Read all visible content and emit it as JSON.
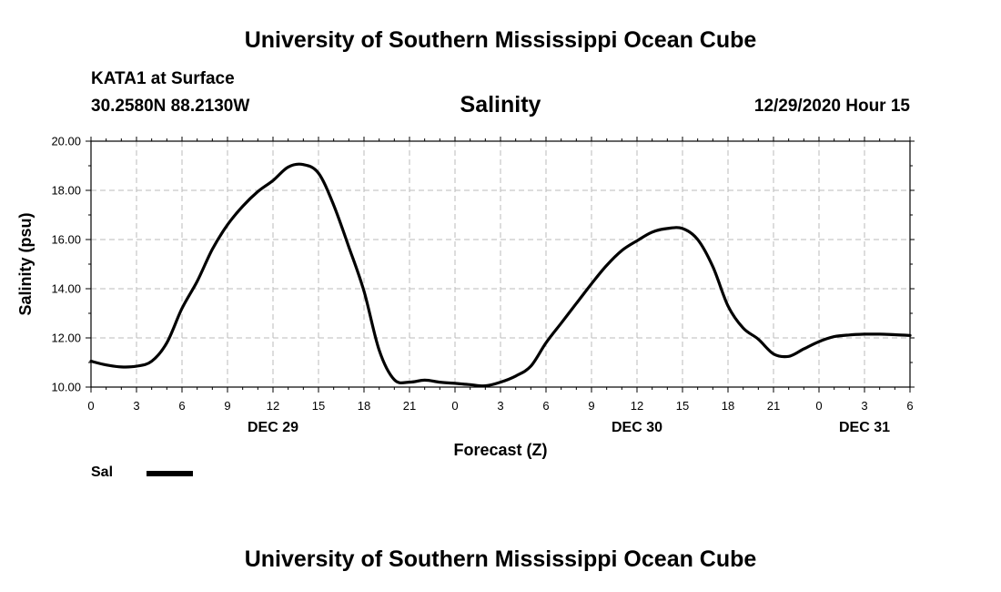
{
  "header": {
    "top_title": "University of Southern Mississippi Ocean Cube",
    "bottom_title": "University of Southern Mississippi Ocean Cube",
    "station": "KATA1 at Surface",
    "coords": "30.2580N 88.2130W",
    "chart_title": "Salinity",
    "datetime": "12/29/2020 Hour 15"
  },
  "chart_data": {
    "type": "line",
    "title": "Salinity",
    "xlabel": "Forecast (Z)",
    "ylabel": "Salinity (psu)",
    "xlim": [
      0,
      54
    ],
    "ylim": [
      10,
      20
    ],
    "grid": true,
    "x_ticks": [
      0,
      3,
      6,
      9,
      12,
      15,
      18,
      21,
      24,
      27,
      30,
      33,
      36,
      39,
      42,
      45,
      48,
      51,
      54
    ],
    "x_tick_labels": [
      "0",
      "3",
      "6",
      "9",
      "12",
      "15",
      "18",
      "21",
      "0",
      "3",
      "6",
      "9",
      "12",
      "15",
      "18",
      "21",
      "0",
      "3",
      "6"
    ],
    "y_ticks": [
      10,
      12,
      14,
      16,
      18,
      20
    ],
    "y_tick_labels": [
      "10.00",
      "12.00",
      "14.00",
      "16.00",
      "18.00",
      "20.00"
    ],
    "day_labels": [
      {
        "x": 12,
        "label": "DEC 29"
      },
      {
        "x": 36,
        "label": "DEC 30"
      },
      {
        "x": 51,
        "label": "DEC 31"
      }
    ],
    "legend": [
      {
        "name": "Sal",
        "color": "#000000"
      }
    ],
    "series": [
      {
        "name": "Sal",
        "x": [
          0,
          1,
          2,
          3,
          4,
          5,
          6,
          7,
          8,
          9,
          10,
          11,
          12,
          13,
          14,
          15,
          16,
          17,
          18,
          19,
          20,
          21,
          22,
          23,
          24,
          25,
          26,
          27,
          28,
          29,
          30,
          31,
          32,
          33,
          34,
          35,
          36,
          37,
          38,
          39,
          40,
          41,
          42,
          43,
          44,
          45,
          46,
          47,
          48,
          49,
          50,
          51,
          52,
          53,
          54
        ],
        "values": [
          11.05,
          10.9,
          10.82,
          10.85,
          11.05,
          11.8,
          13.2,
          14.3,
          15.6,
          16.6,
          17.35,
          17.95,
          18.4,
          18.95,
          19.05,
          18.7,
          17.4,
          15.7,
          13.9,
          11.5,
          10.3,
          10.2,
          10.28,
          10.2,
          10.15,
          10.1,
          10.05,
          10.2,
          10.45,
          10.85,
          11.8,
          12.6,
          13.4,
          14.2,
          14.95,
          15.55,
          15.95,
          16.3,
          16.45,
          16.45,
          16.0,
          14.9,
          13.3,
          12.4,
          11.95,
          11.35,
          11.25,
          11.55,
          11.85,
          12.05,
          12.12,
          12.15,
          12.15,
          12.13,
          12.1
        ]
      }
    ]
  }
}
